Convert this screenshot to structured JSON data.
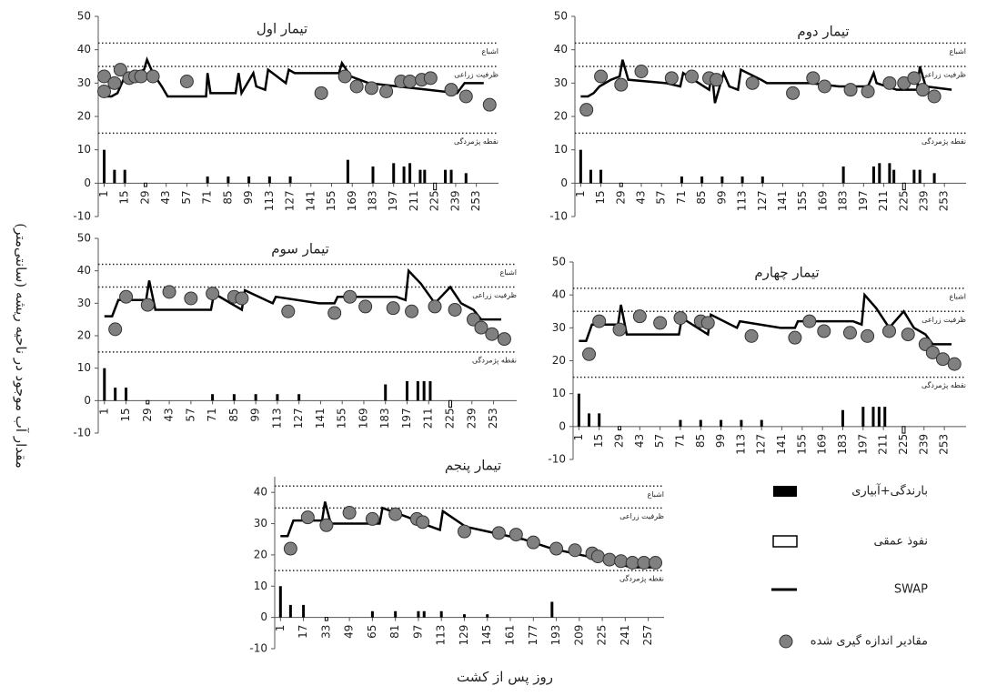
{
  "chart_data": [
    {
      "type": "combo",
      "title": "تیمار اول",
      "xlim": [
        -3,
        268
      ],
      "xticks": [
        1,
        15,
        29,
        43,
        57,
        71,
        85,
        99,
        113,
        127,
        141,
        155,
        169,
        183,
        197,
        211,
        225,
        239,
        253
      ],
      "ylim": [
        -10,
        50
      ],
      "yticks": [
        -10,
        0,
        10,
        20,
        30,
        40,
        50
      ],
      "ref_lines": [
        {
          "value": 42,
          "label": "اشباع"
        },
        {
          "value": 35,
          "label": "ظرفیت زراعی"
        },
        {
          "value": 15,
          "label": "نقطه پژمردگی"
        }
      ],
      "bars": {
        "color": "#000000",
        "x": [
          1,
          8,
          15,
          71,
          85,
          99,
          113,
          127,
          166,
          183,
          197,
          204,
          208,
          215,
          218,
          232,
          236,
          246
        ],
        "values": [
          10,
          4,
          4,
          2,
          2,
          2,
          2,
          2,
          7,
          5,
          6,
          5,
          6,
          4,
          4,
          4,
          4,
          3
        ]
      },
      "percolation": {
        "x": [
          29,
          225
        ],
        "values": [
          -1,
          -2
        ]
      },
      "swap": {
        "color": "#000000",
        "x": [
          1,
          6,
          10,
          14,
          22,
          28,
          30,
          34,
          40,
          44,
          70,
          71,
          73,
          90,
          92,
          94,
          102,
          104,
          110,
          112,
          124,
          126,
          130,
          160,
          162,
          168,
          180,
          200,
          220,
          240,
          245,
          258
        ],
        "values": [
          26,
          26,
          27,
          31,
          33,
          34,
          37,
          33,
          29,
          26,
          26,
          33,
          27,
          27,
          33,
          27,
          33,
          29,
          28,
          34,
          30,
          34,
          33,
          33,
          36,
          32,
          30,
          29,
          28,
          27,
          30,
          30
        ]
      },
      "measured": {
        "color": "#808080",
        "x": [
          1,
          1,
          8,
          12,
          18,
          22,
          26,
          34,
          57,
          148,
          164,
          172,
          182,
          192,
          202,
          208,
          216,
          222,
          236,
          246,
          262
        ],
        "values": [
          32,
          27.5,
          30,
          34,
          31.5,
          32,
          32,
          32,
          30.5,
          27,
          32,
          29,
          28.5,
          27.5,
          30.5,
          30.5,
          31,
          31.5,
          28,
          26,
          23.5
        ]
      }
    },
    {
      "type": "combo",
      "title": "تیمار دوم",
      "xlim": [
        -3,
        268
      ],
      "xticks": [
        1,
        15,
        29,
        43,
        57,
        71,
        85,
        99,
        113,
        127,
        141,
        155,
        169,
        183,
        197,
        211,
        225,
        239,
        253
      ],
      "ylim": [
        -10,
        50
      ],
      "yticks": [
        -10,
        0,
        10,
        20,
        30,
        40,
        50
      ],
      "ref_lines": [
        {
          "value": 42,
          "label": "اشباع"
        },
        {
          "value": 35,
          "label": "ظرفیت زراعی"
        },
        {
          "value": 15,
          "label": "نقطه پژمردگی"
        }
      ],
      "bars": {
        "color": "#000000",
        "x": [
          1,
          8,
          15,
          71,
          85,
          99,
          113,
          127,
          183,
          204,
          208,
          215,
          218,
          232,
          236,
          246
        ],
        "values": [
          10,
          4,
          4,
          2,
          2,
          2,
          2,
          2,
          5,
          5,
          6,
          6,
          4,
          4,
          4,
          3
        ]
      },
      "percolation": {
        "x": [
          29,
          225
        ],
        "values": [
          -1,
          -2
        ]
      },
      "swap": {
        "color": "#000000",
        "x": [
          1,
          6,
          10,
          14,
          22,
          28,
          30,
          34,
          60,
          70,
          72,
          90,
          92,
          94,
          100,
          104,
          110,
          112,
          126,
          130,
          160,
          180,
          200,
          204,
          206,
          220,
          234,
          236,
          240,
          258
        ],
        "values": [
          26,
          26,
          27,
          29,
          31,
          32,
          37,
          31,
          30,
          29,
          33,
          28,
          33,
          24,
          33,
          29,
          28,
          34,
          31,
          30,
          30,
          29,
          29,
          33,
          30,
          28,
          28,
          35,
          29,
          28
        ]
      },
      "measured": {
        "color": "#808080",
        "x": [
          5,
          15,
          29,
          43,
          64,
          78,
          90,
          95,
          120,
          148,
          162,
          170,
          188,
          200,
          215,
          225,
          232,
          238,
          246
        ],
        "values": [
          22,
          32,
          29.5,
          33.5,
          31.5,
          32,
          31.5,
          31,
          30,
          27,
          31.5,
          29,
          28,
          27.5,
          30,
          30,
          31.5,
          28,
          26
        ]
      }
    },
    {
      "type": "combo",
      "title": "تیمار سوم",
      "xlim": [
        -3,
        268
      ],
      "xticks": [
        1,
        15,
        29,
        43,
        57,
        71,
        85,
        99,
        113,
        127,
        141,
        155,
        169,
        183,
        197,
        211,
        225,
        239,
        253
      ],
      "ylim": [
        -10,
        50
      ],
      "yticks": [
        -10,
        0,
        10,
        20,
        30,
        40,
        50
      ],
      "ref_lines": [
        {
          "value": 42,
          "label": "اشباع"
        },
        {
          "value": 35,
          "label": "ظرفیت زراعی"
        },
        {
          "value": 15,
          "label": "نقطه پژمردگی"
        }
      ],
      "bars": {
        "color": "#000000",
        "x": [
          1,
          8,
          15,
          71,
          85,
          99,
          113,
          127,
          183,
          197,
          204,
          208,
          212
        ],
        "values": [
          10,
          4,
          4,
          2,
          2,
          2,
          2,
          2,
          5,
          6,
          6,
          6,
          6
        ]
      },
      "percolation": {
        "x": [
          29,
          225
        ],
        "values": [
          -1,
          -2
        ]
      },
      "swap": {
        "color": "#000000",
        "x": [
          1,
          6,
          10,
          14,
          22,
          28,
          30,
          34,
          60,
          70,
          72,
          90,
          92,
          110,
          112,
          140,
          150,
          152,
          190,
          196,
          198,
          206,
          215,
          225,
          232,
          240,
          245,
          258
        ],
        "values": [
          26,
          26,
          31,
          31,
          31,
          31,
          37,
          28,
          28,
          28,
          33,
          28,
          34,
          30,
          32,
          30,
          30,
          32,
          32,
          31,
          40,
          36,
          30,
          35,
          30,
          28,
          25,
          25
        ]
      },
      "measured": {
        "color": "#808080",
        "x": [
          8,
          15,
          29,
          43,
          57,
          71,
          85,
          90,
          120,
          150,
          160,
          170,
          188,
          200,
          215,
          228,
          240,
          245,
          252,
          260
        ],
        "values": [
          22,
          32,
          29.5,
          33.5,
          31.5,
          33,
          32,
          31.5,
          27.5,
          27,
          32,
          29,
          28.5,
          27.5,
          29,
          28,
          25,
          22.5,
          20.5,
          19
        ]
      }
    },
    {
      "type": "combo",
      "title": "تیمار چهارم",
      "xlim": [
        -3,
        268
      ],
      "xticks": [
        1,
        15,
        29,
        43,
        57,
        71,
        85,
        99,
        113,
        127,
        141,
        155,
        169,
        183,
        197,
        211,
        225,
        239,
        253
      ],
      "ylim": [
        -10,
        50
      ],
      "yticks": [
        -10,
        0,
        10,
        20,
        30,
        40,
        50
      ],
      "ref_lines": [
        {
          "value": 42,
          "label": "اشباع"
        },
        {
          "value": 35,
          "label": "ظرفیت زراعی"
        },
        {
          "value": 15,
          "label": "نقطه پژمردگی"
        }
      ],
      "bars": {
        "color": "#000000",
        "x": [
          1,
          8,
          15,
          71,
          85,
          99,
          113,
          127,
          183,
          197,
          204,
          208,
          212
        ],
        "values": [
          10,
          4,
          4,
          2,
          2,
          2,
          2,
          2,
          5,
          6,
          6,
          6,
          6
        ]
      },
      "percolation": {
        "x": [
          29,
          225
        ],
        "values": [
          -1,
          -2
        ]
      },
      "swap": {
        "color": "#000000",
        "x": [
          1,
          6,
          10,
          14,
          22,
          28,
          30,
          34,
          60,
          70,
          72,
          90,
          92,
          110,
          112,
          140,
          150,
          152,
          190,
          196,
          198,
          206,
          215,
          225,
          232,
          240,
          245,
          258
        ],
        "values": [
          26,
          26,
          31,
          31,
          31,
          31,
          37,
          28,
          28,
          28,
          33,
          28,
          34,
          30,
          32,
          30,
          30,
          32,
          32,
          31,
          40,
          36,
          30,
          35,
          30,
          28,
          25,
          25
        ]
      },
      "measured": {
        "color": "#808080",
        "x": [
          8,
          15,
          29,
          43,
          57,
          71,
          85,
          90,
          120,
          150,
          160,
          170,
          188,
          200,
          215,
          228,
          240,
          245,
          252,
          260
        ],
        "values": [
          22,
          32,
          29.5,
          33.5,
          31.5,
          33,
          32,
          31.5,
          27.5,
          27,
          32,
          29,
          28.5,
          27.5,
          29,
          28,
          25,
          22.5,
          20.5,
          19
        ]
      }
    },
    {
      "type": "combo",
      "title": "تیمار پنجم",
      "xlim": [
        -3,
        268
      ],
      "xticks": [
        1,
        17,
        33,
        49,
        65,
        81,
        97,
        113,
        129,
        145,
        161,
        177,
        193,
        209,
        225,
        241,
        257
      ],
      "ylim": [
        -10,
        45
      ],
      "yticks": [
        -10,
        0,
        10,
        20,
        30,
        40
      ],
      "ref_lines": [
        {
          "value": 42,
          "label": "اشباع"
        },
        {
          "value": 35,
          "label": "ظرفیت زراعی"
        },
        {
          "value": 15,
          "label": "نقطه پژمردگی"
        }
      ],
      "bars": {
        "color": "#000000",
        "x": [
          1,
          8,
          17,
          65,
          81,
          97,
          101,
          113,
          129,
          145,
          190
        ],
        "values": [
          10,
          4,
          4,
          2,
          2,
          2,
          2,
          2,
          1,
          1,
          5
        ]
      },
      "percolation": {
        "x": [
          33
        ],
        "values": [
          -1
        ]
      },
      "swap": {
        "color": "#000000",
        "x": [
          1,
          6,
          10,
          14,
          22,
          30,
          32,
          36,
          60,
          70,
          72,
          90,
          100,
          112,
          114,
          130,
          150,
          170,
          190,
          210,
          230,
          245,
          260
        ],
        "values": [
          26,
          26,
          31,
          31,
          31,
          31,
          37,
          30,
          30,
          30,
          35,
          32,
          30,
          28,
          34,
          29,
          27,
          25,
          22,
          20,
          18,
          16,
          16
        ]
      },
      "measured": {
        "color": "#808080",
        "x": [
          8,
          20,
          33,
          49,
          65,
          81,
          96,
          100,
          129,
          153,
          165,
          177,
          193,
          206,
          218,
          222,
          230,
          238,
          246,
          254,
          262
        ],
        "values": [
          22,
          32,
          29.5,
          33.5,
          31.5,
          33,
          31.5,
          30.5,
          27.5,
          27,
          26.5,
          24,
          22,
          21.5,
          20.5,
          19.5,
          18.5,
          18,
          17.5,
          17.5,
          17.5
        ]
      }
    }
  ],
  "ylabel": "مقدار آب موجود در ناحیه ریشه (سانتی‌متر)",
  "xlabel": "روز پس از کشت",
  "legend": [
    "بارندگی+آبیاری",
    "نفوذ عمقی",
    "SWAP",
    "مقادیر اندازه گیری شده"
  ]
}
